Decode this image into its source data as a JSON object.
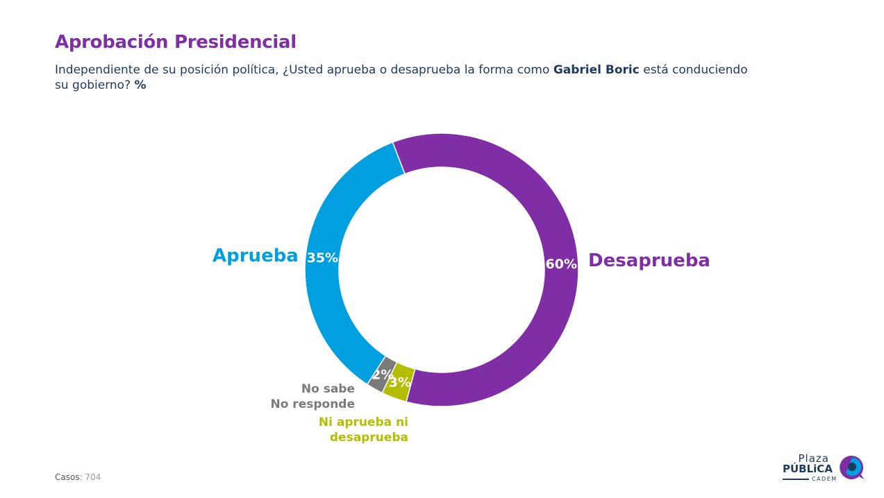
{
  "header": {
    "title": "Aprobación Presidencial",
    "subtitle_pre": "Independiente de su posición política, ¿Usted aprueba o desaprueba la forma como ",
    "subtitle_bold": "Gabriel Boric",
    "subtitle_post": " está conduciendo su gobierno? ",
    "subtitle_pct": "%"
  },
  "chart_data": {
    "type": "pie",
    "subtype": "donut",
    "title": "Aprobación Presidencial",
    "slices": [
      {
        "name": "Desaprueba",
        "value": 60,
        "label": "60%",
        "color": "#7F2EA6"
      },
      {
        "name": "Ni aprueba ni desaprueba",
        "value": 3,
        "label": "3%",
        "color": "#B5BD00"
      },
      {
        "name": "No sabe No responde",
        "value": 2,
        "label": "2%",
        "color": "#7a7a7a"
      },
      {
        "name": "Aprueba",
        "value": 35,
        "label": "35%",
        "color": "#009FDF"
      }
    ],
    "category_labels": {
      "aprueba": "Aprueba",
      "desaprueba": "Desaprueba",
      "ns_line1": "No sabe",
      "ns_line2": "No responde",
      "ni_line1": "Ni aprueba ni",
      "ni_line2": "desaprueba"
    }
  },
  "footer": {
    "casos_label": "Casos",
    "casos_value": ": 704",
    "logo_plaza": "Plaza",
    "logo_publica": "PÚBLiCA",
    "logo_cadem": "CADEM"
  }
}
